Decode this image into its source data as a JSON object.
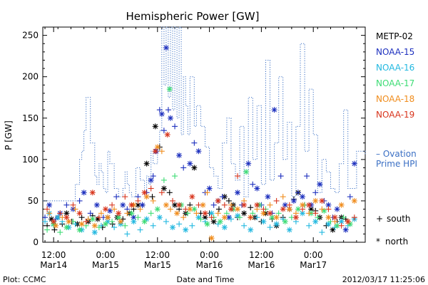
{
  "chart_data": {
    "type": "scatter",
    "title": "Hemispheric Power [GW]",
    "ylabel": "P [GW]",
    "xlabel": "Date and Time",
    "ylim": [
      0,
      260
    ],
    "y_ticks": [
      0,
      50,
      100,
      150,
      200,
      250
    ],
    "x_ticks": [
      {
        "t": 0,
        "line1": "12:00",
        "line2": "Mar14"
      },
      {
        "t": 12,
        "line1": "0:00",
        "line2": "Mar15"
      },
      {
        "t": 24,
        "line1": "12:00",
        "line2": "Mar15"
      },
      {
        "t": 36,
        "line1": "0:00",
        "line2": "Mar16"
      },
      {
        "t": 48,
        "line1": "12:00",
        "line2": "Mar16"
      },
      {
        "t": 60,
        "line1": "0:00",
        "line2": "Mar17"
      }
    ],
    "xlim": [
      -2.5,
      72
    ],
    "legend": {
      "position": "right",
      "entries": [
        {
          "name": "METP-02",
          "color": "#000000"
        },
        {
          "name": "NOAA-15",
          "color": "#1c2fbe"
        },
        {
          "name": "NOAA-16",
          "color": "#22b8e0"
        },
        {
          "name": "NOAA-17",
          "color": "#3ddc74"
        },
        {
          "name": "NOAA-18",
          "color": "#f08c1c"
        },
        {
          "name": "NOAA-19",
          "color": "#d8341c"
        }
      ],
      "ovation_label_1": "– Ovation",
      "ovation_label_2": "Prime HPI",
      "ovation_color": "#3a6fc4",
      "marker_south_symbol": "+",
      "marker_south_label": "south",
      "marker_north_symbol": "*",
      "marker_north_label": "north"
    },
    "footer": {
      "left": "Plot: CCMC",
      "right": "2012/03/17 11:25:06"
    },
    "ovation_series": {
      "name": "Ovation Prime HPI",
      "x": [
        -2.5,
        3,
        5,
        6,
        6.5,
        7,
        7.5,
        8.5,
        9.5,
        10,
        10.5,
        11,
        11.5,
        12,
        12.5,
        13,
        14,
        15,
        16,
        16.5,
        17,
        17.5,
        18,
        19,
        20,
        21,
        21.5,
        22,
        22.5,
        23,
        24,
        24.5,
        25,
        25.5,
        26,
        26.5,
        27,
        27.5,
        28,
        28.5,
        29,
        29.5,
        30,
        30.5,
        31,
        31.5,
        32,
        32.5,
        33,
        34,
        35,
        36,
        37,
        38,
        39,
        40,
        41,
        42,
        43,
        44,
        45,
        46,
        47,
        48,
        49,
        50,
        51,
        52,
        53,
        54,
        55,
        56,
        57,
        58,
        59,
        60,
        61,
        62,
        63,
        64,
        65,
        66,
        67,
        68,
        69,
        70,
        71,
        72
      ],
      "y": [
        50,
        50,
        70,
        100,
        110,
        135,
        175,
        120,
        80,
        70,
        95,
        85,
        65,
        60,
        110,
        95,
        65,
        55,
        65,
        85,
        70,
        60,
        55,
        90,
        75,
        55,
        80,
        70,
        110,
        95,
        110,
        135,
        260,
        190,
        260,
        175,
        260,
        160,
        260,
        150,
        260,
        130,
        200,
        165,
        130,
        200,
        200,
        140,
        165,
        140,
        115,
        90,
        80,
        65,
        120,
        150,
        95,
        75,
        140,
        55,
        175,
        100,
        165,
        70,
        220,
        75,
        120,
        200,
        100,
        145,
        55,
        140,
        240,
        110,
        185,
        130,
        60,
        100,
        85,
        65,
        60,
        95,
        160,
        65,
        65,
        110,
        110,
        105
      ]
    },
    "scatter_series": [
      {
        "name": "METP-02",
        "color": "#000000",
        "marker": "both",
        "x": [
          -1.5,
          -0.5,
          0.2,
          1.0,
          2.0,
          3.0,
          4.2,
          5.5,
          6.5,
          8.0,
          9.0,
          10.2,
          11.3,
          12.5,
          13.6,
          14.7,
          16.0,
          17.5,
          18.5,
          19.5,
          20.5,
          21.5,
          22.8,
          23.5,
          24.5,
          25.5,
          26.8,
          28.0,
          29.0,
          30.5,
          31.5,
          32.5,
          34.0,
          35.0,
          36.0,
          37.0,
          38.2,
          39.5,
          40.5,
          41.5,
          42.5,
          44.0,
          45.5,
          46.5,
          48.0,
          49.0,
          50.5,
          51.5,
          53.0,
          54.5,
          55.5,
          56.5,
          58.0,
          59.5,
          60.5,
          61.5,
          63.0,
          64.5,
          65.5,
          66.5,
          67.5
        ],
        "y": [
          20,
          28,
          15,
          30,
          22,
          35,
          25,
          22,
          30,
          25,
          32,
          28,
          18,
          30,
          22,
          30,
          28,
          35,
          40,
          45,
          45,
          95,
          55,
          140,
          115,
          65,
          60,
          45,
          40,
          35,
          45,
          90,
          35,
          30,
          35,
          25,
          40,
          55,
          50,
          45,
          30,
          35,
          42,
          30,
          25,
          35,
          28,
          20,
          30,
          40,
          52,
          60,
          45,
          40,
          38,
          30,
          20,
          15,
          25,
          30,
          28
        ]
      },
      {
        "name": "NOAA-15",
        "color": "#1c2fbe",
        "marker": "both",
        "x": [
          -2.0,
          -1.0,
          0.5,
          1.5,
          3.0,
          4.5,
          6.0,
          7.0,
          8.5,
          10.0,
          11.5,
          13.0,
          14.5,
          16.0,
          17.0,
          18.5,
          19.5,
          20.5,
          21.5,
          22.5,
          23.0,
          23.7,
          24.5,
          25.0,
          25.5,
          26.0,
          26.5,
          27.0,
          28.0,
          29.0,
          30.0,
          31.5,
          32.5,
          33.5,
          35.0,
          36.0,
          37.0,
          38.0,
          39.0,
          40.5,
          41.5,
          42.5,
          43.5,
          45.0,
          46.0,
          47.0,
          48.0,
          49.5,
          50.5,
          51.0,
          52.5,
          53.5,
          54.5,
          55.5,
          56.5,
          57.5,
          58.5,
          59.5,
          60.5,
          61.5,
          62.5,
          63.5,
          64.5,
          65.5,
          66.5,
          67.5,
          68.5,
          69.5
        ],
        "y": [
          30,
          45,
          28,
          35,
          45,
          40,
          50,
          60,
          35,
          45,
          30,
          38,
          55,
          45,
          40,
          30,
          55,
          45,
          60,
          75,
          80,
          110,
          160,
          155,
          135,
          235,
          160,
          150,
          140,
          105,
          90,
          95,
          120,
          110,
          60,
          65,
          45,
          50,
          55,
          30,
          40,
          60,
          45,
          95,
          70,
          65,
          45,
          55,
          35,
          160,
          80,
          45,
          40,
          50,
          60,
          55,
          80,
          45,
          60,
          70,
          50,
          45,
          30,
          40,
          25,
          15,
          55,
          95
        ]
      },
      {
        "name": "NOAA-16",
        "color": "#22b8e0",
        "marker": "both",
        "x": [
          -2.0,
          -1.0,
          0.0,
          1.0,
          2.0,
          3.5,
          5.0,
          6.5,
          8.0,
          9.5,
          11.0,
          12.5,
          14.0,
          15.5,
          17.0,
          18.5,
          20.0,
          21.5,
          23.0,
          24.5,
          26.0,
          27.5,
          29.0,
          30.5,
          32.0,
          33.5,
          35.0,
          36.5,
          38.0,
          39.5,
          41.0,
          42.5,
          44.0,
          45.5,
          47.0,
          48.5,
          50.0,
          51.5,
          53.0,
          54.5,
          56.0,
          57.5,
          59.0,
          60.5,
          62.0,
          63.5,
          65.0,
          66.5,
          68.0,
          69.5
        ],
        "y": [
          25,
          35,
          20,
          30,
          25,
          18,
          22,
          15,
          28,
          12,
          20,
          25,
          18,
          22,
          10,
          25,
          15,
          28,
          20,
          30,
          25,
          18,
          22,
          15,
          20,
          30,
          25,
          35,
          22,
          18,
          28,
          32,
          20,
          15,
          30,
          25,
          18,
          22,
          28,
          15,
          25,
          35,
          20,
          25,
          12,
          22,
          18,
          25,
          20,
          28
        ]
      },
      {
        "name": "NOAA-17",
        "color": "#3ddc74",
        "marker": "both",
        "x": [
          -1.5,
          0.0,
          1.5,
          3.0,
          4.5,
          6.0,
          7.5,
          9.0,
          10.5,
          12.0,
          13.5,
          15.0,
          16.5,
          18.0,
          19.5,
          21.0,
          22.5,
          24.0,
          25.5,
          26.8,
          28.0,
          29.5,
          31.0,
          32.5,
          34.0,
          35.5,
          37.0,
          38.5,
          40.0,
          41.5,
          43.0,
          44.5,
          46.0,
          47.5,
          49.0,
          50.5,
          52.0,
          53.5,
          55.0,
          56.5,
          58.0,
          59.5,
          61.0,
          62.5,
          64.0,
          65.5,
          67.0,
          68.5
        ],
        "y": [
          15,
          22,
          12,
          18,
          25,
          15,
          20,
          28,
          18,
          22,
          25,
          30,
          20,
          35,
          30,
          25,
          35,
          40,
          75,
          185,
          80,
          45,
          35,
          40,
          28,
          22,
          30,
          25,
          35,
          40,
          30,
          85,
          35,
          45,
          40,
          30,
          35,
          25,
          30,
          40,
          45,
          35,
          30,
          38,
          25,
          20,
          30,
          22
        ]
      },
      {
        "name": "NOAA-18",
        "color": "#f08c1c",
        "marker": "both",
        "x": [
          -1.0,
          0.5,
          2.0,
          3.5,
          5.0,
          6.5,
          8.0,
          9.5,
          11.0,
          12.5,
          14.0,
          15.5,
          17.0,
          18.5,
          20.0,
          21.5,
          23.0,
          24.0,
          25.0,
          26.0,
          27.0,
          28.5,
          30.0,
          31.5,
          33.0,
          34.5,
          35.5,
          36.5,
          38.0,
          39.5,
          41.0,
          42.5,
          44.0,
          45.5,
          47.0,
          48.5,
          50.0,
          51.5,
          53.0,
          54.5,
          56.0,
          57.5,
          59.0,
          60.5,
          62.0,
          63.5,
          65.0,
          66.5,
          68.0,
          69.5
        ],
        "y": [
          35,
          20,
          30,
          25,
          40,
          22,
          28,
          20,
          35,
          30,
          40,
          25,
          35,
          45,
          40,
          55,
          50,
          115,
          110,
          45,
          40,
          35,
          30,
          40,
          35,
          45,
          60,
          5,
          35,
          30,
          45,
          40,
          50,
          30,
          40,
          35,
          45,
          30,
          55,
          40,
          35,
          45,
          35,
          50,
          40,
          30,
          25,
          45,
          25,
          50
        ]
      },
      {
        "name": "NOAA-19",
        "color": "#d8341c",
        "marker": "both",
        "x": [
          -1.5,
          0.0,
          1.5,
          3.0,
          4.5,
          6.0,
          7.5,
          9.0,
          10.5,
          12.0,
          13.5,
          15.0,
          16.5,
          18.0,
          19.5,
          21.0,
          22.5,
          23.5,
          25.0,
          26.3,
          27.5,
          29.0,
          30.5,
          32.0,
          33.5,
          35.0,
          36.5,
          38.0,
          39.5,
          41.0,
          42.5,
          44.0,
          45.5,
          47.0,
          48.5,
          50.0,
          51.5,
          53.0,
          54.5,
          56.0,
          57.5,
          59.0,
          60.5,
          62.0,
          63.5,
          65.0,
          66.5,
          68.0,
          69.5
        ],
        "y": [
          40,
          25,
          35,
          30,
          45,
          35,
          25,
          60,
          30,
          40,
          45,
          35,
          55,
          45,
          50,
          60,
          65,
          110,
          60,
          130,
          50,
          45,
          40,
          55,
          45,
          35,
          30,
          50,
          45,
          40,
          80,
          45,
          30,
          45,
          40,
          35,
          50,
          40,
          45,
          30,
          40,
          45,
          35,
          50,
          40,
          30,
          20,
          25,
          30
        ]
      }
    ]
  }
}
